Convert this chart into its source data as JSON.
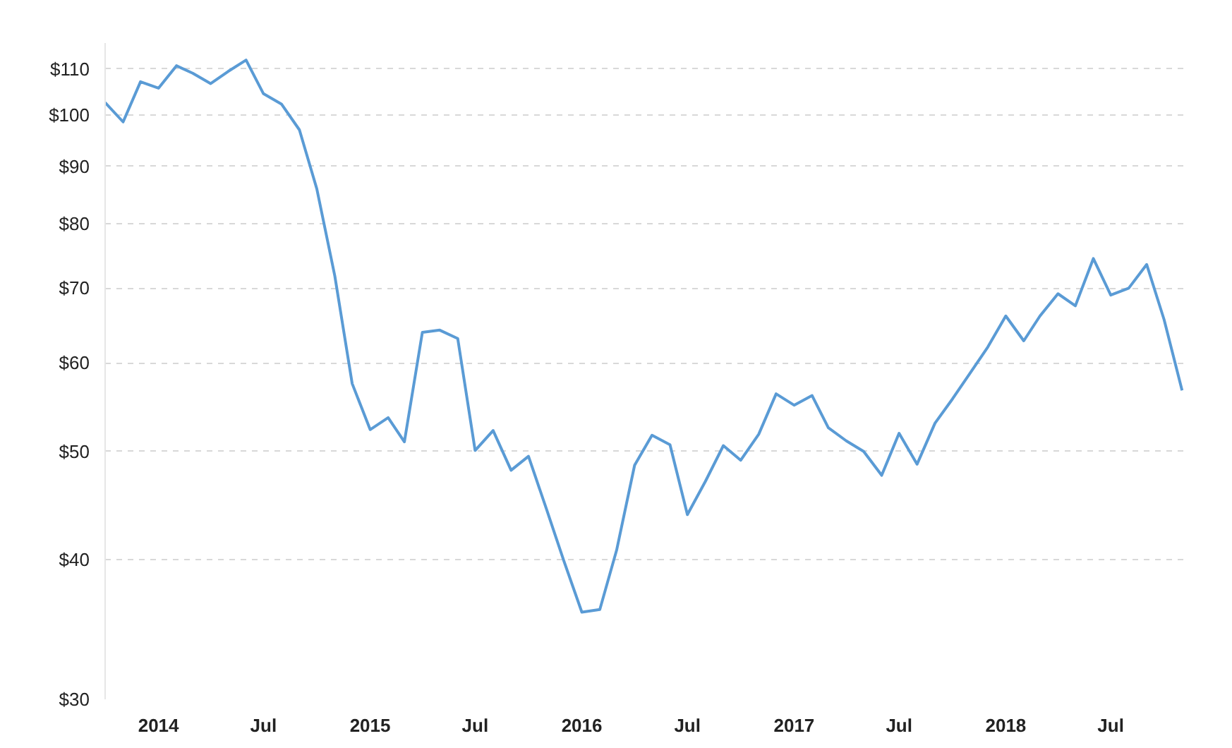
{
  "chart_data": {
    "type": "line",
    "log": "y",
    "grid": "y",
    "line_style": "solid",
    "x": [
      "2013-10",
      "2013-11",
      "2013-12",
      "2014-01",
      "2014-02",
      "2014-03",
      "2014-04",
      "2014-05",
      "2014-06",
      "2014-07",
      "2014-08",
      "2014-09",
      "2014-10",
      "2014-11",
      "2014-12",
      "2015-01",
      "2015-02",
      "2015-03",
      "2015-04",
      "2015-05",
      "2015-06",
      "2015-07",
      "2015-08",
      "2015-09",
      "2015-10",
      "2015-11",
      "2015-12",
      "2016-01",
      "2016-02",
      "2016-03",
      "2016-04",
      "2016-05",
      "2016-06",
      "2016-07",
      "2016-08",
      "2016-09",
      "2016-10",
      "2016-11",
      "2016-12",
      "2017-01",
      "2017-02",
      "2017-03",
      "2017-04",
      "2017-05",
      "2017-06",
      "2017-07",
      "2017-08",
      "2017-09",
      "2017-10",
      "2017-11",
      "2017-12",
      "2018-01",
      "2018-02",
      "2018-03",
      "2018-04",
      "2018-05",
      "2018-06",
      "2018-07",
      "2018-08",
      "2018-09",
      "2018-10",
      "2018-11"
    ],
    "series": [
      {
        "color": "#5a9bd5",
        "values": [
          102.6,
          98.6,
          107.1,
          105.7,
          110.7,
          109.0,
          106.7,
          109.4,
          112.0,
          104.5,
          102.3,
          97.0,
          85.9,
          71.8,
          57.5,
          52.3,
          53.6,
          51.0,
          63.9,
          64.2,
          63.1,
          50.1,
          52.2,
          48.1,
          49.5,
          44.4,
          39.9,
          35.9,
          36.1,
          40.8,
          48.6,
          51.7,
          50.7,
          43.9,
          47.0,
          50.6,
          49.1,
          51.8,
          56.3,
          55.0,
          56.1,
          52.5,
          51.1,
          50.0,
          47.6,
          51.9,
          48.7,
          53.0,
          55.7,
          58.8,
          62.0,
          66.1,
          62.8,
          66.1,
          69.2,
          67.5,
          74.4,
          69.0,
          70.0,
          73.5,
          65.6,
          56.7
        ]
      }
    ],
    "xlim": [
      "2013-10",
      "2018-11-08"
    ],
    "xticks": [
      {
        "value": "2014-01",
        "label": "2014"
      },
      {
        "value": "2014-07",
        "label": "Jul"
      },
      {
        "value": "2015-01",
        "label": "2015"
      },
      {
        "value": "2015-07",
        "label": "Jul"
      },
      {
        "value": "2016-01",
        "label": "2016"
      },
      {
        "value": "2016-07",
        "label": "Jul"
      },
      {
        "value": "2017-01",
        "label": "2017"
      },
      {
        "value": "2017-07",
        "label": "Jul"
      },
      {
        "value": "2018-01",
        "label": "2018"
      },
      {
        "value": "2018-07",
        "label": "Jul"
      }
    ],
    "ylim": [
      30,
      116
    ],
    "yticks": [
      {
        "value": 30,
        "label": "$30"
      },
      {
        "value": 40,
        "label": "$40"
      },
      {
        "value": 50,
        "label": "$50"
      },
      {
        "value": 60,
        "label": "$60"
      },
      {
        "value": 70,
        "label": "$70"
      },
      {
        "value": 80,
        "label": "$80"
      },
      {
        "value": 90,
        "label": "$90"
      },
      {
        "value": 100,
        "label": "$100"
      },
      {
        "value": 110,
        "label": "$110"
      }
    ]
  }
}
